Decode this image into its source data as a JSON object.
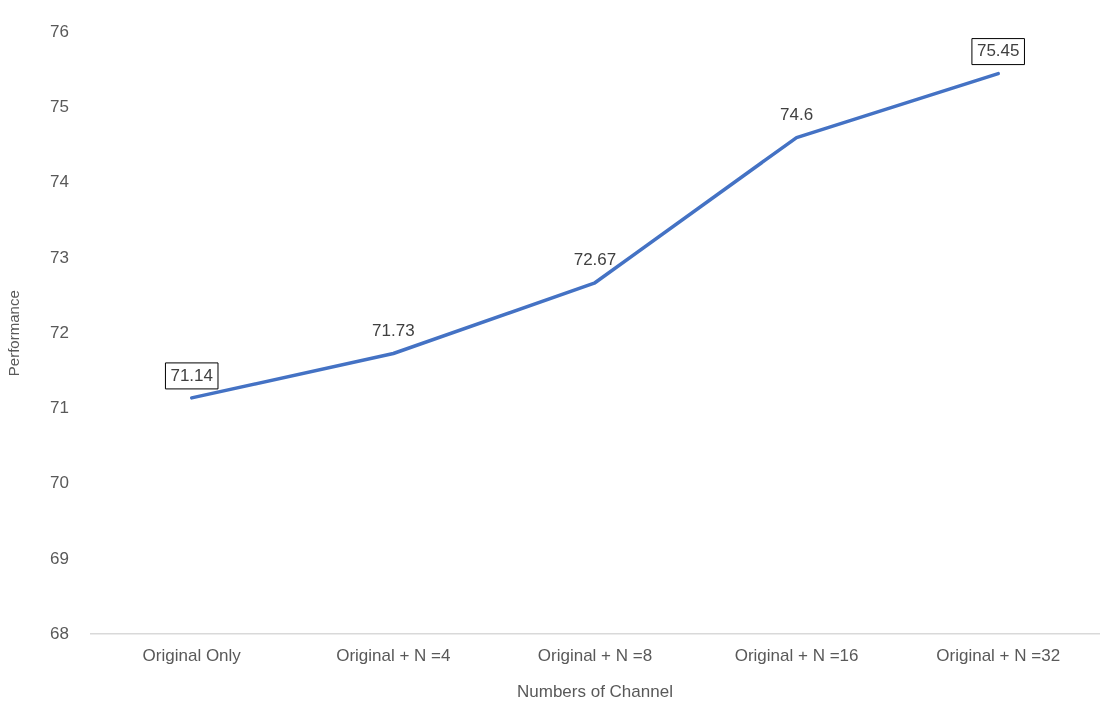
{
  "chart_data": {
    "type": "line",
    "xlabel": "Numbers of Channel",
    "ylabel": "Performance",
    "categories": [
      "Original Only",
      "Original + N =4",
      "Original + N =8",
      "Original + N =16",
      "Original + N =32"
    ],
    "series": [
      {
        "color": "#4472c4",
        "values": [
          71.14,
          71.73,
          72.67,
          74.6,
          75.45
        ]
      }
    ],
    "ylim": [
      68,
      76
    ],
    "yticks": [
      68,
      69,
      70,
      71,
      72,
      73,
      74,
      75,
      76
    ],
    "grid": false,
    "legend": false,
    "marker": "none",
    "line_style": "solid",
    "data_labels": true
  }
}
